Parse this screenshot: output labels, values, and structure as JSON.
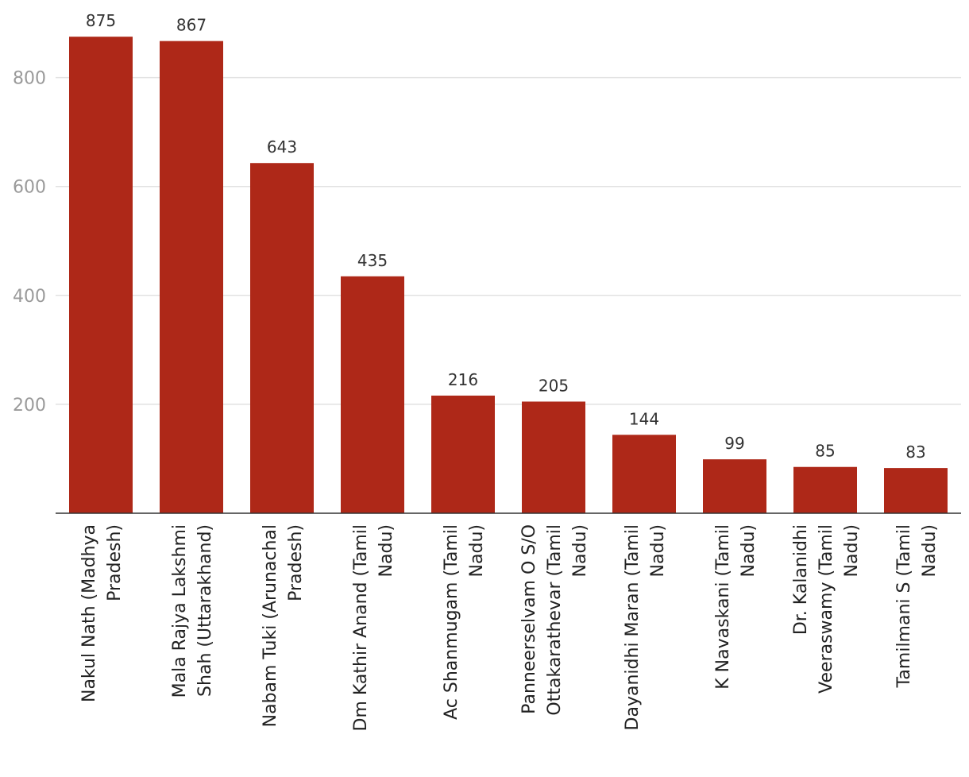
{
  "chart_data": {
    "type": "bar",
    "title": "",
    "xlabel": "",
    "ylabel": "",
    "categories": [
      "Nakul Nath (Madhya Pradesh)",
      "Mala Rajya Lakshmi Shah (Uttarakhand)",
      "Nabam Tuki (Arunachal Pradesh)",
      "Dm Kathir Anand (Tamil Nadu)",
      "Ac Shanmugam (Tamil Nadu)",
      "Panneerselvam O S/O Ottakarathevar (Tamil Nadu)",
      "Dayanidhi Maran (Tamil Nadu)",
      "K Navaskani (Tamil Nadu)",
      "Dr. Kalanidhi Veeraswamy (Tamil Nadu)",
      "Tamilmani S (Tamil Nadu)"
    ],
    "category_lines": [
      [
        "Nakul Nath (Madhya",
        "Pradesh)"
      ],
      [
        "Mala Rajya Lakshmi",
        "Shah (Uttarakhand)"
      ],
      [
        "Nabam Tuki (Arunachal",
        "Pradesh)"
      ],
      [
        "Dm Kathir Anand (Tamil",
        "Nadu)"
      ],
      [
        "Ac Shanmugam (Tamil",
        "Nadu)"
      ],
      [
        "Panneerselvam O S/O",
        "Ottakarathevar (Tamil",
        "Nadu)"
      ],
      [
        "Dayanidhi Maran (Tamil",
        "Nadu)"
      ],
      [
        "K Navaskani (Tamil",
        "Nadu)"
      ],
      [
        "Dr. Kalanidhi",
        "Veeraswamy (Tamil",
        "Nadu)"
      ],
      [
        "Tamilmani S (Tamil",
        "Nadu)"
      ]
    ],
    "values": [
      875,
      867,
      643,
      435,
      216,
      205,
      144,
      99,
      85,
      83
    ],
    "value_labels": [
      "875",
      "867",
      "643",
      "435",
      "216",
      "205",
      "144",
      "99",
      "85",
      "83"
    ],
    "yticks": [
      200,
      400,
      600,
      800
    ],
    "ytick_labels": [
      "200",
      "400",
      "600",
      "800"
    ],
    "ylim": [
      0,
      900
    ],
    "grid": true,
    "legend": "none",
    "colors": {
      "bar": "#ae2818"
    }
  }
}
